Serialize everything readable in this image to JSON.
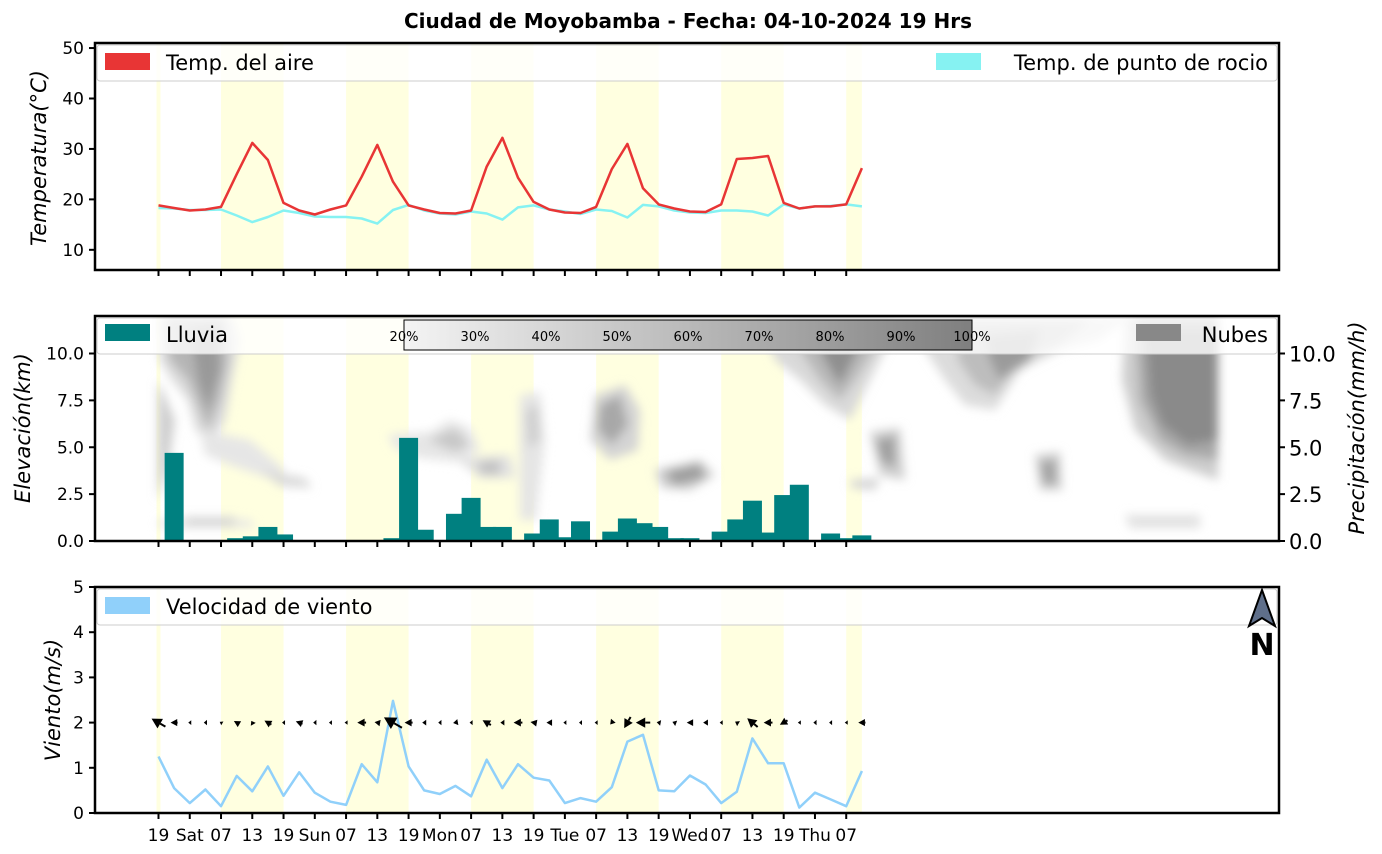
{
  "title": "Ciudad de Moyobamba   -   Fecha: 04-10-2024 19 Hrs",
  "x_labels": [
    "19",
    "Sat",
    "07",
    "13",
    "19",
    "Sun",
    "07",
    "13",
    "19",
    "Mon",
    "07",
    "13",
    "19",
    "Tue",
    "07",
    "13",
    "19",
    "Wed",
    "07",
    "13",
    "19",
    "Thu",
    "07"
  ],
  "day_band_color": "#ffffe0",
  "temperature_panel": {
    "ylabel": "Temperatura(°C)",
    "yticks": [
      "10",
      "20",
      "30",
      "40",
      "50"
    ],
    "legend_air": "Temp. del aire",
    "legend_dew": "Temp. de punto de rocio",
    "air_color": "#e83535",
    "dew_color": "#86f2f2"
  },
  "rain_panel": {
    "ylabel_left": "Elevación(km)",
    "ylabel_right": "Precipitación(mm/h)",
    "yticks": [
      "0.0",
      "2.5",
      "5.0",
      "7.5",
      "10.0"
    ],
    "legend_rain": "Lluvia",
    "legend_clouds": "Nubes",
    "rain_color": "#008080",
    "cloud_color": "#888888",
    "colorbar_labels": [
      "20%",
      "30%",
      "40%",
      "50%",
      "60%",
      "70%",
      "80%",
      "90%",
      "100%"
    ]
  },
  "wind_panel": {
    "ylabel": "Viento(m/s)",
    "yticks": [
      "0",
      "1",
      "2",
      "3",
      "4",
      "5"
    ],
    "legend_wind": "Velocidad de viento",
    "wind_color": "#90d0fa",
    "north_label": "N"
  },
  "chart_data": [
    {
      "type": "line",
      "title": "Ciudad de Moyobamba   -   Fecha: 04-10-2024 19 Hrs",
      "ylabel": "Temperatura(°C)",
      "ylim": [
        6,
        51
      ],
      "x_step_hours": 3,
      "series": [
        {
          "name": "Temp. del aire",
          "values": [
            18.8,
            18.3,
            17.8,
            18.0,
            18.5,
            25.0,
            31.2,
            27.8,
            19.3,
            17.8,
            17.0,
            18.0,
            18.8,
            24.5,
            30.8,
            23.5,
            18.8,
            18.0,
            17.3,
            17.2,
            17.8,
            26.5,
            32.2,
            24.3,
            19.5,
            18.0,
            17.4,
            17.3,
            18.5,
            26.0,
            31.0,
            22.2,
            19.0,
            18.2,
            17.6,
            17.5,
            19.0,
            28.0,
            28.2,
            28.6,
            19.3,
            18.2,
            18.6,
            18.6,
            19.0,
            26.2
          ]
        },
        {
          "name": "Temp. de punto de rocio",
          "values": [
            18.3,
            18.2,
            17.9,
            17.9,
            18.0,
            16.8,
            15.5,
            16.5,
            17.8,
            17.3,
            16.6,
            16.5,
            16.5,
            16.2,
            15.2,
            17.9,
            18.9,
            17.8,
            17.2,
            17.0,
            17.6,
            17.2,
            16.0,
            18.4,
            18.8,
            18.0,
            17.6,
            17.1,
            18.0,
            17.7,
            16.4,
            18.9,
            18.6,
            17.8,
            17.4,
            17.3,
            17.8,
            17.8,
            17.6,
            16.8,
            19.0,
            18.2,
            18.6,
            18.7,
            19.0,
            18.6
          ]
        }
      ]
    },
    {
      "type": "bar",
      "ylabel": "Precipitación(mm/h)",
      "ylim": [
        0,
        12
      ],
      "x_step_hours": 3,
      "series": [
        {
          "name": "Lluvia",
          "values": [
            0,
            4.7,
            0,
            0,
            0,
            0.15,
            0.25,
            0.75,
            0.35,
            0.05,
            0,
            0,
            0,
            0,
            0,
            0.15,
            5.5,
            0.6,
            0,
            1.45,
            2.3,
            0.75,
            0.75,
            0.05,
            0.4,
            1.15,
            0.2,
            1.05,
            0.05,
            0.5,
            1.2,
            0.95,
            0.75,
            0.15,
            0.15,
            0.05,
            0.5,
            1.15,
            2.15,
            0.45,
            2.45,
            3.0,
            0.05,
            0.4,
            0.15,
            0.3
          ]
        }
      ]
    },
    {
      "type": "line",
      "ylabel": "Viento(m/s)",
      "ylim": [
        0,
        5
      ],
      "x_step_hours": 3,
      "series": [
        {
          "name": "Velocidad de viento",
          "values": [
            1.25,
            0.55,
            0.22,
            0.52,
            0.15,
            0.82,
            0.48,
            1.03,
            0.38,
            0.9,
            0.45,
            0.25,
            0.18,
            1.08,
            0.68,
            2.48,
            1.03,
            0.5,
            0.42,
            0.6,
            0.37,
            1.18,
            0.55,
            1.08,
            0.78,
            0.72,
            0.22,
            0.33,
            0.25,
            0.57,
            1.58,
            1.73,
            0.5,
            0.48,
            0.83,
            0.63,
            0.22,
            0.47,
            1.65,
            1.1,
            1.1,
            0.12,
            0.45,
            0.3,
            0.15,
            0.93
          ]
        }
      ],
      "wind_direction_arrow_lengths": [
        1.0,
        0.45,
        0.1,
        0.2,
        0.05,
        0.4,
        0.25,
        0.5,
        0.15,
        0.45,
        0.2,
        0.1,
        0.05,
        0.55,
        0.35,
        1.3,
        0.5,
        0.25,
        0.2,
        0.3,
        0.15,
        0.6,
        0.25,
        0.55,
        0.4,
        0.35,
        0.1,
        0.15,
        0.1,
        0.3,
        0.8,
        0.9,
        0.25,
        0.25,
        0.4,
        0.3,
        0.1,
        0.25,
        0.85,
        0.55,
        0.55,
        0.05,
        0.2,
        0.15,
        0.05,
        0.45
      ],
      "wind_direction_deg": [
        300,
        270,
        270,
        270,
        300,
        300,
        330,
        300,
        270,
        290,
        270,
        270,
        270,
        270,
        280,
        300,
        270,
        270,
        270,
        260,
        270,
        300,
        270,
        270,
        280,
        270,
        270,
        270,
        270,
        220,
        210,
        270,
        280,
        290,
        270,
        270,
        270,
        300,
        310,
        270,
        240,
        270,
        270,
        270,
        270,
        270
      ]
    }
  ]
}
